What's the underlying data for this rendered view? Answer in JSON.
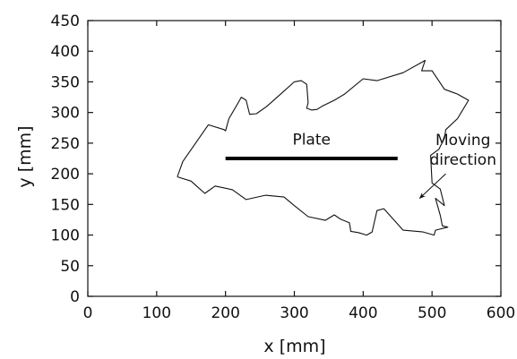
{
  "chart_data": {
    "type": "line",
    "title": "",
    "xlabel": "x [mm]",
    "ylabel": "y [mm]",
    "xlim": [
      0,
      600
    ],
    "ylim": [
      0,
      450
    ],
    "xticks": [
      0,
      100,
      200,
      300,
      400,
      500,
      600
    ],
    "yticks": [
      0,
      50,
      100,
      150,
      200,
      250,
      300,
      350,
      400,
      450
    ],
    "grid": false,
    "series": [
      {
        "values": [
          [
            130,
            195
          ],
          [
            138,
            220
          ],
          [
            175,
            280
          ],
          [
            198,
            272
          ],
          [
            200,
            270
          ],
          [
            205,
            290
          ],
          [
            218,
            315
          ],
          [
            223,
            325
          ],
          [
            230,
            320
          ],
          [
            235,
            297
          ],
          [
            245,
            298
          ],
          [
            260,
            310
          ],
          [
            285,
            335
          ],
          [
            300,
            350
          ],
          [
            310,
            352
          ],
          [
            318,
            346
          ],
          [
            320,
            316
          ],
          [
            318,
            307
          ],
          [
            325,
            304
          ],
          [
            333,
            305
          ],
          [
            340,
            310
          ],
          [
            358,
            320
          ],
          [
            373,
            330
          ],
          [
            400,
            355
          ],
          [
            420,
            352
          ],
          [
            458,
            365
          ],
          [
            490,
            385
          ],
          [
            485,
            368
          ],
          [
            500,
            368
          ],
          [
            518,
            338
          ],
          [
            537,
            330
          ],
          [
            553,
            320
          ],
          [
            537,
            290
          ],
          [
            520,
            272
          ],
          [
            518,
            258
          ],
          [
            510,
            240
          ],
          [
            498,
            230
          ],
          [
            500,
            185
          ],
          [
            512,
            175
          ],
          [
            518,
            148
          ],
          [
            505,
            160
          ],
          [
            512,
            132
          ],
          [
            515,
            115
          ],
          [
            523,
            113
          ],
          [
            505,
            108
          ],
          [
            503,
            100
          ],
          [
            487,
            105
          ],
          [
            458,
            108
          ],
          [
            430,
            143
          ],
          [
            420,
            140
          ],
          [
            413,
            105
          ],
          [
            405,
            100
          ],
          [
            393,
            104
          ],
          [
            382,
            106
          ],
          [
            380,
            120
          ],
          [
            367,
            126
          ],
          [
            358,
            133
          ],
          [
            345,
            124
          ],
          [
            320,
            130
          ],
          [
            300,
            148
          ],
          [
            285,
            162
          ],
          [
            258,
            165
          ],
          [
            230,
            158
          ],
          [
            210,
            174
          ],
          [
            185,
            180
          ],
          [
            170,
            168
          ],
          [
            160,
            178
          ],
          [
            150,
            188
          ],
          [
            130,
            195
          ]
        ]
      }
    ],
    "annotations": [
      {
        "text": "Plate",
        "line": {
          "x": [
            200,
            450
          ],
          "y": [
            225,
            225
          ]
        },
        "label_at": [
          325,
          248
        ]
      },
      {
        "text_lines": [
          "Moving",
          "direction"
        ],
        "label_at": [
          545,
          215
        ],
        "arrow_from": [
          520,
          200
        ],
        "arrow_to": [
          482,
          160
        ]
      }
    ]
  }
}
